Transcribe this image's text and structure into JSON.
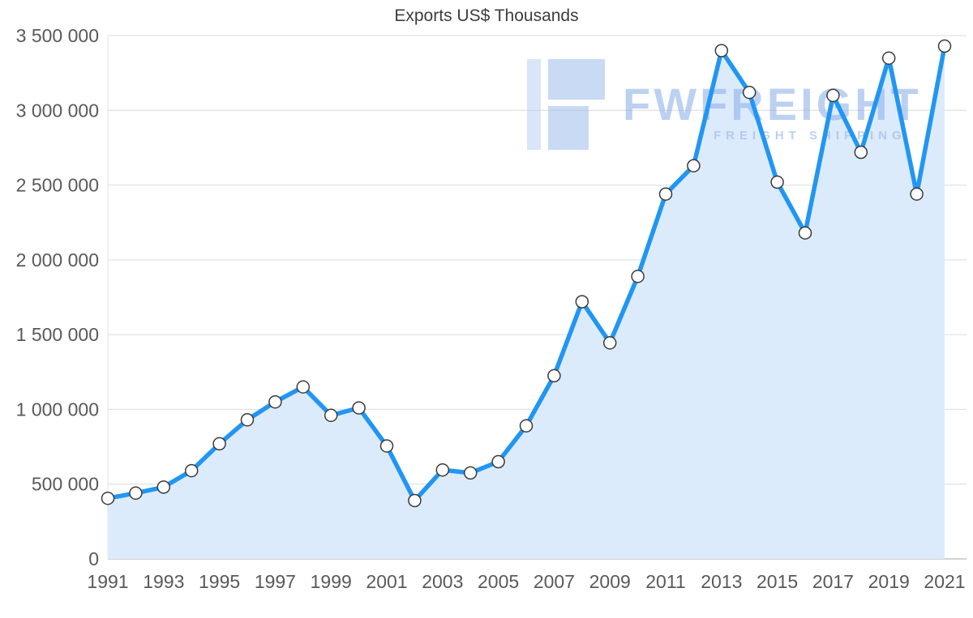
{
  "title": "Exports US$ Thousands",
  "watermark": {
    "title": "FWFREIGHT",
    "subtitle": "FREIGHT SHIPPING",
    "color": "#8fb2ea"
  },
  "chart_data": {
    "type": "line",
    "title": "Exports US$ Thousands",
    "x": [
      1991,
      1992,
      1993,
      1994,
      1995,
      1996,
      1997,
      1998,
      1999,
      2000,
      2001,
      2002,
      2003,
      2004,
      2005,
      2006,
      2007,
      2008,
      2009,
      2010,
      2011,
      2012,
      2013,
      2014,
      2015,
      2016,
      2017,
      2018,
      2019,
      2020,
      2021
    ],
    "values": [
      405000,
      440000,
      480000,
      590000,
      770000,
      930000,
      1050000,
      1150000,
      960000,
      1010000,
      755000,
      390000,
      595000,
      575000,
      650000,
      890000,
      1225000,
      1720000,
      1445000,
      1890000,
      2440000,
      2630000,
      3400000,
      3120000,
      2520000,
      2180000,
      3100000,
      2720000,
      3350000,
      2440000,
      3430000
    ],
    "ylim": [
      0,
      3500000
    ],
    "y_ticks": [
      {
        "value": 0,
        "label": "0"
      },
      {
        "value": 500000,
        "label": "500 000"
      },
      {
        "value": 1000000,
        "label": "1 000 000"
      },
      {
        "value": 1500000,
        "label": "1 500 000"
      },
      {
        "value": 2000000,
        "label": "2 000 000"
      },
      {
        "value": 2500000,
        "label": "2 500 000"
      },
      {
        "value": 3000000,
        "label": "3 000 000"
      },
      {
        "value": 3500000,
        "label": "3 500 000"
      }
    ],
    "x_tick_labels": [
      "1991",
      "1993",
      "1995",
      "1997",
      "1999",
      "2001",
      "2003",
      "2005",
      "2007",
      "2009",
      "2011",
      "2013",
      "2015",
      "2017",
      "2019",
      "2021"
    ],
    "xlabel": "",
    "ylabel": "",
    "grid": true,
    "legend": "none",
    "line_color": "#2196f3",
    "fill_color": "#dcebfb",
    "marker_fill": "#ffffff",
    "marker_stroke": "#3a3a3a",
    "grid_color": "#dcdcdc",
    "axis_color": "#a6a6a6"
  }
}
